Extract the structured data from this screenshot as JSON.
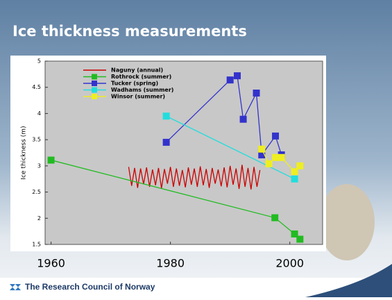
{
  "slide": {
    "title": "Ice thickness measurements",
    "footer": "The Research Council of Norway"
  },
  "chart_data": {
    "type": "line",
    "y_label": "Ice thickness (m)",
    "xlim": [
      1959,
      2005.5
    ],
    "xticks": [
      1960,
      1980,
      2000
    ],
    "ylim": [
      1.5,
      5
    ],
    "yticks": [
      1.5,
      2,
      2.5,
      3,
      3.5,
      4,
      4.5,
      5
    ],
    "legend": "upper left",
    "series": [
      {
        "name": "Naguny (annual)",
        "color": "#cc0000",
        "markers": false,
        "x": [
          1973,
          1973.5,
          1974,
          1974.5,
          1975,
          1975.5,
          1976,
          1976.5,
          1977,
          1977.5,
          1978,
          1978.5,
          1979,
          1979.5,
          1980,
          1980.5,
          1981,
          1981.5,
          1982,
          1982.5,
          1983,
          1983.5,
          1984,
          1984.5,
          1985,
          1985.5,
          1986,
          1986.5,
          1987,
          1987.5,
          1988,
          1988.5,
          1989,
          1989.5,
          1990,
          1990.5,
          1991,
          1991.5,
          1992,
          1992.5,
          1993,
          1993.5,
          1994,
          1994.5,
          1995
        ],
        "values": [
          2.98,
          2.62,
          2.96,
          2.58,
          2.95,
          2.65,
          2.97,
          2.6,
          2.93,
          2.63,
          2.96,
          2.57,
          2.94,
          2.66,
          2.98,
          2.6,
          2.95,
          2.62,
          2.92,
          2.59,
          2.97,
          2.64,
          2.95,
          2.6,
          2.99,
          2.63,
          2.94,
          2.58,
          2.96,
          2.66,
          2.93,
          2.61,
          2.97,
          2.59,
          3.0,
          2.64,
          2.95,
          2.56,
          3.02,
          2.6,
          2.96,
          2.55,
          2.98,
          2.6,
          2.92
        ]
      },
      {
        "name": "Rothrock (summer)",
        "color": "#22bb22",
        "markers": true,
        "x": [
          1960,
          1997.5,
          2000.8,
          2001.7
        ],
        "values": [
          3.11,
          2.01,
          1.7,
          1.6
        ]
      },
      {
        "name": "Tucker (spring)",
        "color": "#3333cc",
        "markers": true,
        "x": [
          1979.3,
          1990,
          1991.2,
          1992.2,
          1994.4,
          1995.3,
          1997.6,
          1998.6
        ],
        "values": [
          3.45,
          4.64,
          4.72,
          3.89,
          4.39,
          3.21,
          3.57,
          3.21
        ]
      },
      {
        "name": "Wadhams (summer)",
        "color": "#22dddd",
        "markers": true,
        "x": [
          1979.3,
          2000.8
        ],
        "values": [
          3.95,
          2.75
        ]
      },
      {
        "name": "Winsor (summer)",
        "color": "#eeee22",
        "markers": true,
        "x": [
          1995.3,
          1996.5,
          1997.6,
          1998.6,
          2000.8,
          2001.7
        ],
        "values": [
          3.32,
          3.04,
          3.16,
          3.16,
          2.89,
          3.0
        ]
      }
    ]
  }
}
